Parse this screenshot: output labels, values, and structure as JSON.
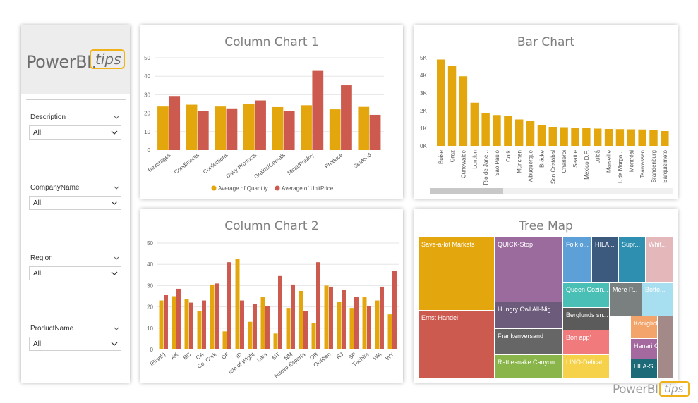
{
  "slicers": {
    "logo": {
      "main": "PowerBI.",
      "tips": "tips"
    },
    "items": [
      {
        "label": "Description",
        "value": "All"
      },
      {
        "label": "CompanyName",
        "value": "All"
      },
      {
        "label": "Region",
        "value": "All"
      },
      {
        "label": "ProductName",
        "value": "All"
      }
    ]
  },
  "cards": {
    "column1_title": "Column Chart 1",
    "bar_title": "Bar Chart",
    "column2_title": "Column Chart 2",
    "treemap_title": "Tree Map"
  },
  "colors": {
    "gold": "#e3a70d",
    "red": "#cd5a4f"
  },
  "chart_data": [
    {
      "type": "bar",
      "title": "Column Chart 1",
      "categories": [
        "Beverages",
        "Condiments",
        "Confections",
        "Dairy Products",
        "Grains/Cereals",
        "Meat/Poultry",
        "Produce",
        "Seafood"
      ],
      "series": [
        {
          "name": "Average of Quantity",
          "values": [
            23.6,
            24.6,
            23.6,
            25.1,
            23.3,
            24.3,
            22.1,
            23.4
          ]
        },
        {
          "name": "Average of UnitPrice",
          "values": [
            29.3,
            21.2,
            22.6,
            26.9,
            21.2,
            42.9,
            35.1,
            19.1
          ]
        }
      ],
      "yticks": [
        0,
        10,
        20,
        30,
        40,
        50
      ],
      "ylim": [
        0,
        50
      ],
      "legend": "bottom"
    },
    {
      "type": "bar",
      "title": "Bar Chart",
      "categories": [
        "Boise",
        "Graz",
        "Cunewalde",
        "London",
        "Rio de Jane...",
        "Sao Paulo",
        "Cork",
        "München",
        "Albuquerque",
        "Bräcke",
        "San Cristóbal",
        "Charleroi",
        "Seattle",
        "México D.F.",
        "Luleå",
        "Marseille",
        "I. de Marga...",
        "Montréal",
        "Tsawassen",
        "Brandenburg",
        "Barquisimeto"
      ],
      "values": [
        4900,
        4550,
        3950,
        2450,
        1850,
        1750,
        1680,
        1500,
        1400,
        1200,
        1080,
        1060,
        1040,
        1000,
        980,
        960,
        950,
        940,
        930,
        880,
        840
      ],
      "yticks": [
        "0K",
        "1K",
        "2K",
        "3K",
        "4K",
        "5K"
      ],
      "ylim": [
        0,
        5000
      ]
    },
    {
      "type": "bar",
      "title": "Column Chart 2",
      "categories": [
        "(Blank)",
        "AK",
        "BC",
        "CA",
        "Co. Cork",
        "DF",
        "ID",
        "Isle of Wight",
        "Lara",
        "MT",
        "NM",
        "Nueva Esparta",
        "OR",
        "Québec",
        "RJ",
        "SP",
        "Táchira",
        "WA",
        "WY"
      ],
      "series": [
        {
          "name": "Average of Quantity",
          "values": [
            23,
            25,
            23.5,
            18,
            30.5,
            8.5,
            42.5,
            13,
            24.5,
            7.5,
            19.5,
            27.5,
            12.5,
            30,
            22.5,
            19.5,
            24.5,
            23,
            16.5
          ]
        },
        {
          "name": "Average of UnitPrice",
          "values": [
            25.5,
            28.5,
            22,
            23,
            31,
            41,
            23,
            21.5,
            20.5,
            34.5,
            30.5,
            18,
            41,
            29.5,
            28,
            24.5,
            20.5,
            29.5,
            37
          ]
        }
      ],
      "yticks": [
        0,
        10,
        20,
        30,
        40,
        50
      ],
      "ylim": [
        0,
        50
      ]
    },
    {
      "type": "treemap",
      "title": "Tree Map",
      "items": [
        {
          "label": "Save-a-lot Markets",
          "color": "#e3a70d"
        },
        {
          "label": "Ernst Handel",
          "color": "#cd5a4f"
        },
        {
          "label": "QUICK-Stop",
          "color": "#9b6b9e"
        },
        {
          "label": "Hungry Owl All-Nig...",
          "color": "#6c5b7b"
        },
        {
          "label": "Frankenversand",
          "color": "#666666"
        },
        {
          "label": "Rattlesnake Canyon ...",
          "color": "#8ab54a"
        },
        {
          "label": "Folk o...",
          "color": "#5da0d8"
        },
        {
          "label": "HILA...",
          "color": "#3c5a7e"
        },
        {
          "label": "Supr...",
          "color": "#2e8fb0"
        },
        {
          "label": "Whit...",
          "color": "#e4b8bb"
        },
        {
          "label": "Queen Cozin...",
          "color": "#49bfb5"
        },
        {
          "label": "Mère P...",
          "color": "#7a7f80"
        },
        {
          "label": "Botto...",
          "color": "#a8dff0"
        },
        {
          "label": "Berglunds sn...",
          "color": "#5b5b5b"
        },
        {
          "label": "Königlich Ess...",
          "color": "#f3a46a"
        },
        {
          "label": "Bon app'",
          "color": "#f07a7c"
        },
        {
          "label": "Hanari Carnes",
          "color": "#a46aa0"
        },
        {
          "label": "LINO-Delicat...",
          "color": "#f6d24a"
        },
        {
          "label": "LILA-Superm...",
          "color": "#1d6b79"
        },
        {
          "label": "",
          "color": "#a38a89"
        }
      ]
    }
  ],
  "footer_brand": {
    "main": "PowerBI.",
    "tips": "tips"
  }
}
